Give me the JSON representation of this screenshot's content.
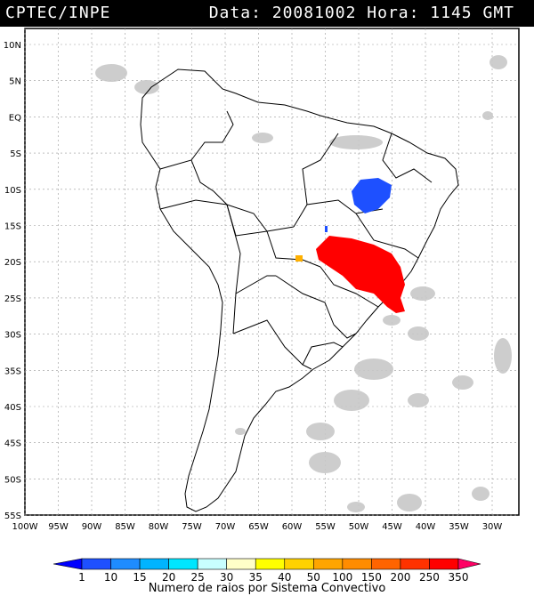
{
  "header": {
    "source": "CPTEC/INPE",
    "datetime": "Data: 20081002 Hora: 1145 GMT"
  },
  "map": {
    "lat_labels": [
      "10N",
      "5N",
      "EQ",
      "5S",
      "10S",
      "15S",
      "20S",
      "25S",
      "30S",
      "35S",
      "40S",
      "45S",
      "50S",
      "55S"
    ],
    "lon_labels": [
      "100W",
      "95W",
      "90W",
      "85W",
      "80W",
      "75W",
      "70W",
      "65W",
      "60W",
      "55W",
      "50W",
      "45W",
      "40W",
      "35W",
      "30W"
    ],
    "systems": [
      {
        "name": "convective-system-northeast-brazil",
        "class": "1-10",
        "color": "#1e50ff"
      },
      {
        "name": "convective-system-southeast-brazil",
        "class": "250-350",
        "color": "#ff0000"
      },
      {
        "name": "convective-system-paraguay-border",
        "class": "35-40",
        "color": "#ffb000"
      }
    ]
  },
  "legend": {
    "labels": [
      "1",
      "10",
      "15",
      "20",
      "25",
      "30",
      "35",
      "40",
      "50",
      "100",
      "150",
      "200",
      "250",
      "350"
    ],
    "colors": [
      "#0000ff",
      "#1e50ff",
      "#1e8cff",
      "#00b4ff",
      "#00e6ff",
      "#c8ffff",
      "#ffffc8",
      "#ffff00",
      "#ffd200",
      "#ffa500",
      "#ff8c00",
      "#ff6400",
      "#ff3200",
      "#ff0000",
      "#ff0064"
    ],
    "title": "Numero de raios por Sistema Convectivo"
  }
}
